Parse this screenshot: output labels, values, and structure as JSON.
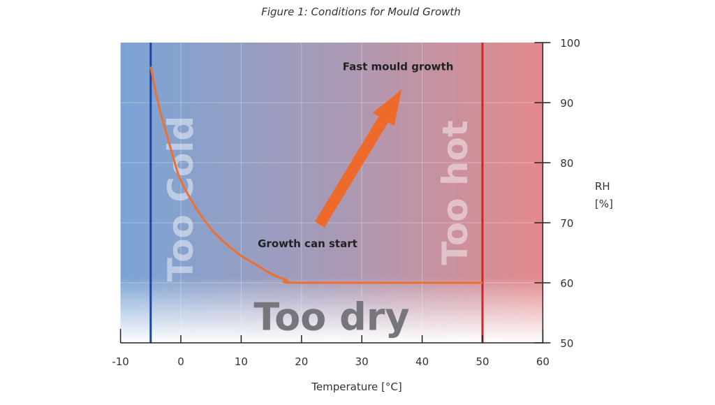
{
  "chart_data": {
    "type": "line",
    "title": "Figure 1: Conditions for Mould Growth",
    "xlabel": "Temperature [°C]",
    "ylabel": "RH [%]",
    "ylabel_lines": [
      "RH",
      "[%]"
    ],
    "xlim": [
      -10,
      60
    ],
    "ylim": [
      50,
      100
    ],
    "x_ticks": [
      -10,
      0,
      10,
      20,
      30,
      40,
      50,
      60
    ],
    "y_ticks": [
      50,
      60,
      70,
      80,
      90,
      100
    ],
    "y_axis_side": "right",
    "grid": true,
    "series": [
      {
        "x": [
          -5,
          -4,
          -3,
          -2,
          -1,
          0,
          2.5,
          5,
          7.5,
          10,
          12.5,
          15,
          17.5,
          20,
          50
        ],
        "y": [
          96,
          91,
          87,
          83.5,
          80,
          77,
          72.5,
          69,
          66.5,
          64.5,
          63,
          61.5,
          60.5,
          60,
          60
        ],
        "color": "#ee7030"
      }
    ],
    "boundaries": [
      {
        "x": -5,
        "color": "#1e44a0"
      },
      {
        "x": 50,
        "color": "#c82828"
      }
    ],
    "arrow": {
      "from": [
        23,
        69.7
      ],
      "to": [
        36.6,
        92.2
      ],
      "color": "#ee6a2a"
    },
    "annotations": [
      {
        "text": "Fast mould growth",
        "x": 36,
        "y": 96
      },
      {
        "text": "Growth can start",
        "x": 21,
        "y": 66.5
      },
      {
        "text": "Too Cold",
        "x": 0,
        "y": 74,
        "rotated": true
      },
      {
        "text": "Too hot",
        "x": 45.5,
        "y": 75,
        "rotated": true
      },
      {
        "text": "Too dry",
        "x": 25,
        "y": 54.5
      }
    ],
    "colors": {
      "cold": "#7aa4d6",
      "mid": "#a79ab6",
      "hot": "#e48a8c",
      "dry": "#ffffff"
    }
  }
}
